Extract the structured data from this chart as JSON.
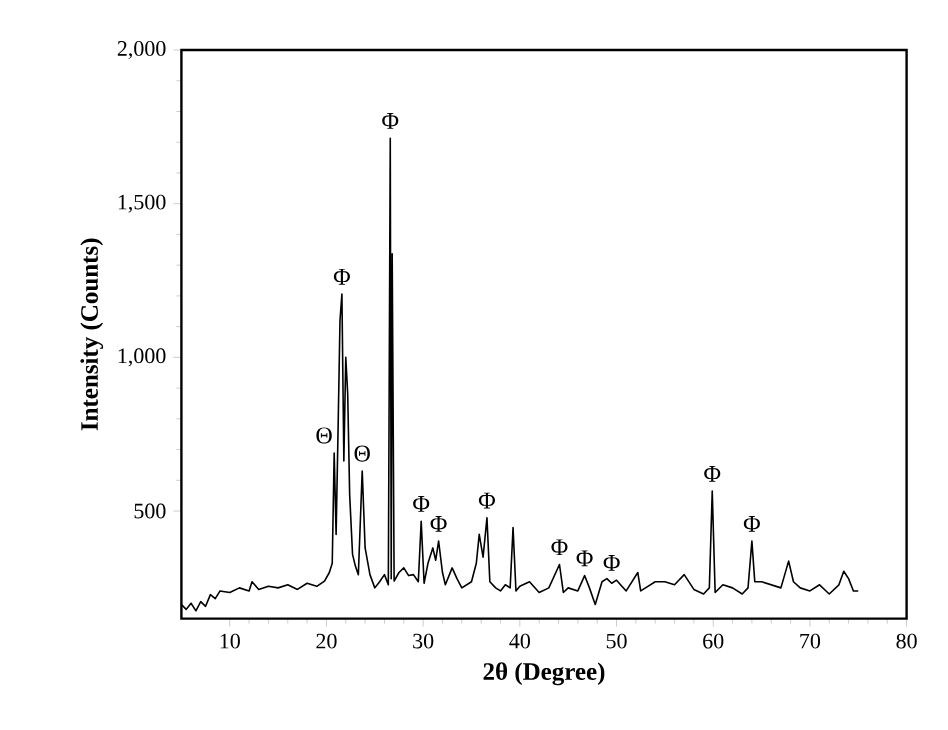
{
  "chart_data": {
    "type": "line",
    "xlabel": "2θ (Degree)",
    "ylabel": "Intensity (Counts)",
    "xlim": [
      5,
      80
    ],
    "xticks": [
      10,
      20,
      30,
      40,
      50,
      60,
      70,
      80
    ],
    "ylim": [
      150,
      2000
    ],
    "yticks": [
      500,
      {
        "value": 1000,
        "label": "1,000"
      },
      {
        "value": 1500,
        "label": "1,500"
      },
      {
        "value": 2000,
        "label": "2,000"
      }
    ],
    "grid": false,
    "series": [
      {
        "color": "#000000",
        "x": [
          5,
          5.5,
          6,
          6.5,
          7,
          7.5,
          8,
          8.5,
          9,
          10,
          11,
          12,
          12.3,
          13,
          14,
          15,
          16,
          17,
          18,
          19,
          19.8,
          20.3,
          20.6,
          20.8,
          21.0,
          21.2,
          21.4,
          21.6,
          21.8,
          22.0,
          22.2,
          22.4,
          22.7,
          23.0,
          23.3,
          23.7,
          24.0,
          24.5,
          25.0,
          25.5,
          26.0,
          26.4,
          26.6,
          26.7,
          26.8,
          27.0,
          27.5,
          28.0,
          28.5,
          29.0,
          29.5,
          29.8,
          30.1,
          30.5,
          31.0,
          31.3,
          31.6,
          32.0,
          32.3,
          33.0,
          33.5,
          34.0,
          35.0,
          35.5,
          35.8,
          36.2,
          36.6,
          36.9,
          37.5,
          38.0,
          38.5,
          39.0,
          39.3,
          39.6,
          40.0,
          41.0,
          42.0,
          43.0,
          44.1,
          44.5,
          45.0,
          46.0,
          46.7,
          47.2,
          47.8,
          48.5,
          49.0,
          49.5,
          50.0,
          51.0,
          52.2,
          52.5,
          53.0,
          54.0,
          55.0,
          56.0,
          57.0,
          58.0,
          59.0,
          59.6,
          59.9,
          60.2,
          61.0,
          62.0,
          63.0,
          63.6,
          64.0,
          64.3,
          65.0,
          66.0,
          67.0,
          67.8,
          68.3,
          69.0,
          70.0,
          71.0,
          72.0,
          73.0,
          73.5,
          74.0,
          74.5,
          75.0
        ],
        "values": [
          196,
          180,
          200,
          175,
          205,
          190,
          228,
          215,
          240,
          235,
          250,
          240,
          270,
          245,
          255,
          250,
          260,
          245,
          265,
          255,
          272,
          300,
          330,
          689,
          424,
          760,
          1120,
          1206,
          663,
          1000,
          880,
          554,
          359,
          320,
          293,
          630,
          380,
          293,
          250,
          270,
          293,
          260,
          1713,
          280,
          1337,
          272,
          300,
          315,
          290,
          293,
          270,
          467,
          265,
          330,
          380,
          340,
          402,
          300,
          260,
          315,
          280,
          250,
          270,
          330,
          424,
          350,
          478,
          270,
          250,
          240,
          260,
          250,
          446,
          240,
          255,
          270,
          235,
          250,
          326,
          235,
          250,
          240,
          290,
          250,
          196,
          270,
          280,
          265,
          275,
          240,
          300,
          240,
          250,
          270,
          270,
          260,
          293,
          245,
          230,
          250,
          565,
          235,
          260,
          250,
          230,
          250,
          402,
          270,
          270,
          260,
          250,
          337,
          270,
          250,
          240,
          260,
          230,
          260,
          304,
          280,
          240,
          240
        ]
      }
    ],
    "annotations": [
      {
        "text": "Θ",
        "x": 20.8,
        "y": 689
      },
      {
        "text": "Φ",
        "x": 21.6,
        "y": 1206
      },
      {
        "text": "Θ",
        "x": 23.7,
        "y": 630
      },
      {
        "text": "Φ",
        "x": 26.6,
        "y": 1713
      },
      {
        "text": "Φ",
        "x": 29.8,
        "y": 467
      },
      {
        "text": "Φ",
        "x": 31.6,
        "y": 402
      },
      {
        "text": "Φ",
        "x": 36.6,
        "y": 478
      },
      {
        "text": "Φ",
        "x": 44.1,
        "y": 326
      },
      {
        "text": "Φ",
        "x": 46.7,
        "y": 290
      },
      {
        "text": "Φ",
        "x": 49.5,
        "y": 275
      },
      {
        "text": "Φ",
        "x": 59.9,
        "y": 565
      },
      {
        "text": "Φ",
        "x": 64.0,
        "y": 402
      }
    ]
  }
}
